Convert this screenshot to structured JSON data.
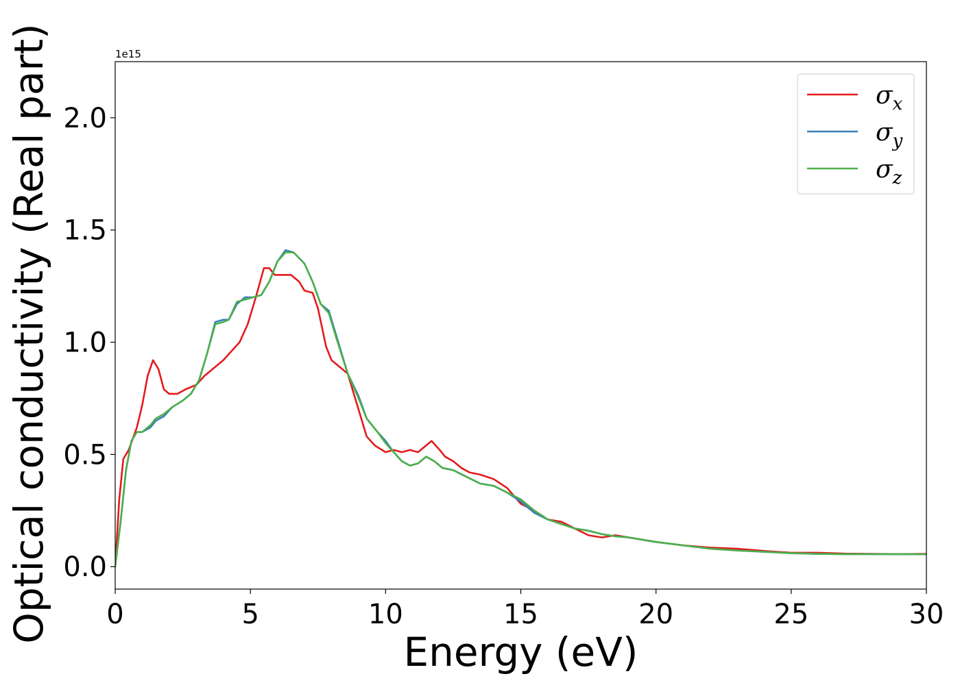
{
  "chart_data": {
    "type": "line",
    "title": "",
    "xlabel": "Energy (eV)",
    "ylabel": "Optical conductivity (Real part)",
    "y_offset_text": "1e15",
    "xlim": [
      0,
      30
    ],
    "ylim": [
      -0.1,
      2.25
    ],
    "x_ticks": [
      0,
      5,
      10,
      15,
      20,
      25,
      30
    ],
    "x_tick_labels": [
      "0",
      "5",
      "10",
      "15",
      "20",
      "25",
      "30"
    ],
    "y_ticks": [
      0.0,
      0.5,
      1.0,
      1.5,
      2.0
    ],
    "y_tick_labels": [
      "0.0",
      "0.5",
      "1.0",
      "1.5",
      "2.0"
    ],
    "grid": false,
    "legend_position": "top-right",
    "series": [
      {
        "name": "σx",
        "symbol": "σ",
        "subscript": "x",
        "color": "#e41a1c",
        "points": [
          [
            0,
            0
          ],
          [
            0.15,
            0.3
          ],
          [
            0.3,
            0.48
          ],
          [
            0.5,
            0.52
          ],
          [
            0.8,
            0.62
          ],
          [
            1.0,
            0.72
          ],
          [
            1.2,
            0.85
          ],
          [
            1.4,
            0.92
          ],
          [
            1.6,
            0.88
          ],
          [
            1.8,
            0.79
          ],
          [
            2.0,
            0.77
          ],
          [
            2.3,
            0.77
          ],
          [
            2.6,
            0.79
          ],
          [
            3.0,
            0.81
          ],
          [
            3.3,
            0.85
          ],
          [
            3.6,
            0.88
          ],
          [
            4.0,
            0.92
          ],
          [
            4.3,
            0.96
          ],
          [
            4.6,
            1.0
          ],
          [
            4.9,
            1.08
          ],
          [
            5.2,
            1.2
          ],
          [
            5.5,
            1.33
          ],
          [
            5.7,
            1.33
          ],
          [
            5.9,
            1.3
          ],
          [
            6.2,
            1.3
          ],
          [
            6.5,
            1.3
          ],
          [
            6.8,
            1.27
          ],
          [
            7.0,
            1.23
          ],
          [
            7.3,
            1.22
          ],
          [
            7.5,
            1.15
          ],
          [
            7.8,
            0.98
          ],
          [
            8.0,
            0.92
          ],
          [
            8.3,
            0.89
          ],
          [
            8.6,
            0.86
          ],
          [
            9.0,
            0.7
          ],
          [
            9.3,
            0.58
          ],
          [
            9.6,
            0.54
          ],
          [
            10.0,
            0.51
          ],
          [
            10.3,
            0.52
          ],
          [
            10.6,
            0.51
          ],
          [
            10.9,
            0.52
          ],
          [
            11.2,
            0.51
          ],
          [
            11.5,
            0.54
          ],
          [
            11.7,
            0.56
          ],
          [
            12.0,
            0.52
          ],
          [
            12.2,
            0.49
          ],
          [
            12.5,
            0.47
          ],
          [
            12.8,
            0.44
          ],
          [
            13.1,
            0.42
          ],
          [
            13.5,
            0.41
          ],
          [
            14.0,
            0.39
          ],
          [
            14.5,
            0.35
          ],
          [
            15.0,
            0.28
          ],
          [
            15.5,
            0.25
          ],
          [
            16.0,
            0.21
          ],
          [
            16.5,
            0.2
          ],
          [
            17.0,
            0.17
          ],
          [
            17.5,
            0.14
          ],
          [
            18.0,
            0.13
          ],
          [
            18.5,
            0.14
          ],
          [
            19.0,
            0.13
          ],
          [
            19.5,
            0.12
          ],
          [
            20.0,
            0.11
          ],
          [
            21.0,
            0.095
          ],
          [
            22.0,
            0.085
          ],
          [
            23.0,
            0.08
          ],
          [
            24.0,
            0.07
          ],
          [
            25.0,
            0.062
          ],
          [
            26.0,
            0.062
          ],
          [
            27.0,
            0.058
          ],
          [
            28.0,
            0.057
          ],
          [
            29.0,
            0.056
          ],
          [
            30.0,
            0.057
          ]
        ]
      },
      {
        "name": "σy",
        "symbol": "σ",
        "subscript": "y",
        "color": "#377eb8",
        "points": [
          [
            0,
            0
          ],
          [
            0.2,
            0.2
          ],
          [
            0.4,
            0.43
          ],
          [
            0.6,
            0.56
          ],
          [
            0.8,
            0.6
          ],
          [
            1.0,
            0.6
          ],
          [
            1.3,
            0.62
          ],
          [
            1.5,
            0.65
          ],
          [
            1.8,
            0.67
          ],
          [
            2.1,
            0.71
          ],
          [
            2.5,
            0.74
          ],
          [
            2.8,
            0.77
          ],
          [
            3.1,
            0.83
          ],
          [
            3.4,
            0.95
          ],
          [
            3.7,
            1.09
          ],
          [
            4.0,
            1.1
          ],
          [
            4.2,
            1.1
          ],
          [
            4.5,
            1.17
          ],
          [
            4.8,
            1.2
          ],
          [
            5.1,
            1.2
          ],
          [
            5.4,
            1.21
          ],
          [
            5.7,
            1.27
          ],
          [
            6.0,
            1.36
          ],
          [
            6.3,
            1.41
          ],
          [
            6.6,
            1.4
          ],
          [
            7.0,
            1.35
          ],
          [
            7.3,
            1.27
          ],
          [
            7.6,
            1.17
          ],
          [
            7.9,
            1.14
          ],
          [
            8.2,
            1.02
          ],
          [
            8.6,
            0.86
          ],
          [
            9.0,
            0.76
          ],
          [
            9.3,
            0.66
          ],
          [
            9.7,
            0.6
          ],
          [
            10.0,
            0.56
          ],
          [
            10.3,
            0.51
          ],
          [
            10.6,
            0.47
          ],
          [
            10.9,
            0.45
          ],
          [
            11.2,
            0.46
          ],
          [
            11.5,
            0.49
          ],
          [
            11.8,
            0.47
          ],
          [
            12.1,
            0.44
          ],
          [
            12.5,
            0.43
          ],
          [
            13.0,
            0.4
          ],
          [
            13.5,
            0.37
          ],
          [
            14.0,
            0.36
          ],
          [
            14.5,
            0.33
          ],
          [
            15.0,
            0.29
          ],
          [
            15.5,
            0.24
          ],
          [
            16.0,
            0.21
          ],
          [
            16.5,
            0.19
          ],
          [
            17.0,
            0.17
          ],
          [
            17.5,
            0.16
          ],
          [
            18.0,
            0.145
          ],
          [
            18.5,
            0.135
          ],
          [
            19.0,
            0.13
          ],
          [
            19.5,
            0.12
          ],
          [
            20.0,
            0.11
          ],
          [
            21.0,
            0.095
          ],
          [
            22.0,
            0.08
          ],
          [
            23.0,
            0.072
          ],
          [
            24.0,
            0.066
          ],
          [
            25.0,
            0.06
          ],
          [
            26.0,
            0.057
          ],
          [
            27.0,
            0.056
          ],
          [
            28.0,
            0.056
          ],
          [
            29.0,
            0.056
          ],
          [
            30.0,
            0.055
          ]
        ]
      },
      {
        "name": "σz",
        "symbol": "σ",
        "subscript": "z",
        "color": "#4daf4a",
        "points": [
          [
            0,
            0
          ],
          [
            0.2,
            0.2
          ],
          [
            0.4,
            0.43
          ],
          [
            0.6,
            0.56
          ],
          [
            0.8,
            0.6
          ],
          [
            1.0,
            0.6
          ],
          [
            1.3,
            0.63
          ],
          [
            1.5,
            0.66
          ],
          [
            1.8,
            0.68
          ],
          [
            2.1,
            0.71
          ],
          [
            2.5,
            0.74
          ],
          [
            2.8,
            0.77
          ],
          [
            3.1,
            0.83
          ],
          [
            3.4,
            0.95
          ],
          [
            3.7,
            1.08
          ],
          [
            4.0,
            1.09
          ],
          [
            4.2,
            1.1
          ],
          [
            4.5,
            1.18
          ],
          [
            4.8,
            1.19
          ],
          [
            5.1,
            1.2
          ],
          [
            5.4,
            1.21
          ],
          [
            5.7,
            1.27
          ],
          [
            6.0,
            1.36
          ],
          [
            6.3,
            1.4
          ],
          [
            6.6,
            1.4
          ],
          [
            7.0,
            1.35
          ],
          [
            7.3,
            1.27
          ],
          [
            7.6,
            1.17
          ],
          [
            7.9,
            1.13
          ],
          [
            8.2,
            1.01
          ],
          [
            8.6,
            0.86
          ],
          [
            9.0,
            0.75
          ],
          [
            9.3,
            0.66
          ],
          [
            9.7,
            0.6
          ],
          [
            10.0,
            0.55
          ],
          [
            10.3,
            0.51
          ],
          [
            10.6,
            0.47
          ],
          [
            10.9,
            0.45
          ],
          [
            11.2,
            0.46
          ],
          [
            11.5,
            0.49
          ],
          [
            11.8,
            0.47
          ],
          [
            12.1,
            0.44
          ],
          [
            12.5,
            0.43
          ],
          [
            13.0,
            0.4
          ],
          [
            13.5,
            0.37
          ],
          [
            14.0,
            0.36
          ],
          [
            14.5,
            0.33
          ],
          [
            15.0,
            0.3
          ],
          [
            15.5,
            0.25
          ],
          [
            16.0,
            0.21
          ],
          [
            16.5,
            0.19
          ],
          [
            17.0,
            0.17
          ],
          [
            17.5,
            0.16
          ],
          [
            18.0,
            0.145
          ],
          [
            18.5,
            0.135
          ],
          [
            19.0,
            0.13
          ],
          [
            19.5,
            0.12
          ],
          [
            20.0,
            0.11
          ],
          [
            21.0,
            0.095
          ],
          [
            22.0,
            0.08
          ],
          [
            23.0,
            0.072
          ],
          [
            24.0,
            0.066
          ],
          [
            25.0,
            0.06
          ],
          [
            26.0,
            0.057
          ],
          [
            27.0,
            0.056
          ],
          [
            28.0,
            0.056
          ],
          [
            29.0,
            0.056
          ],
          [
            30.0,
            0.055
          ]
        ]
      }
    ]
  }
}
